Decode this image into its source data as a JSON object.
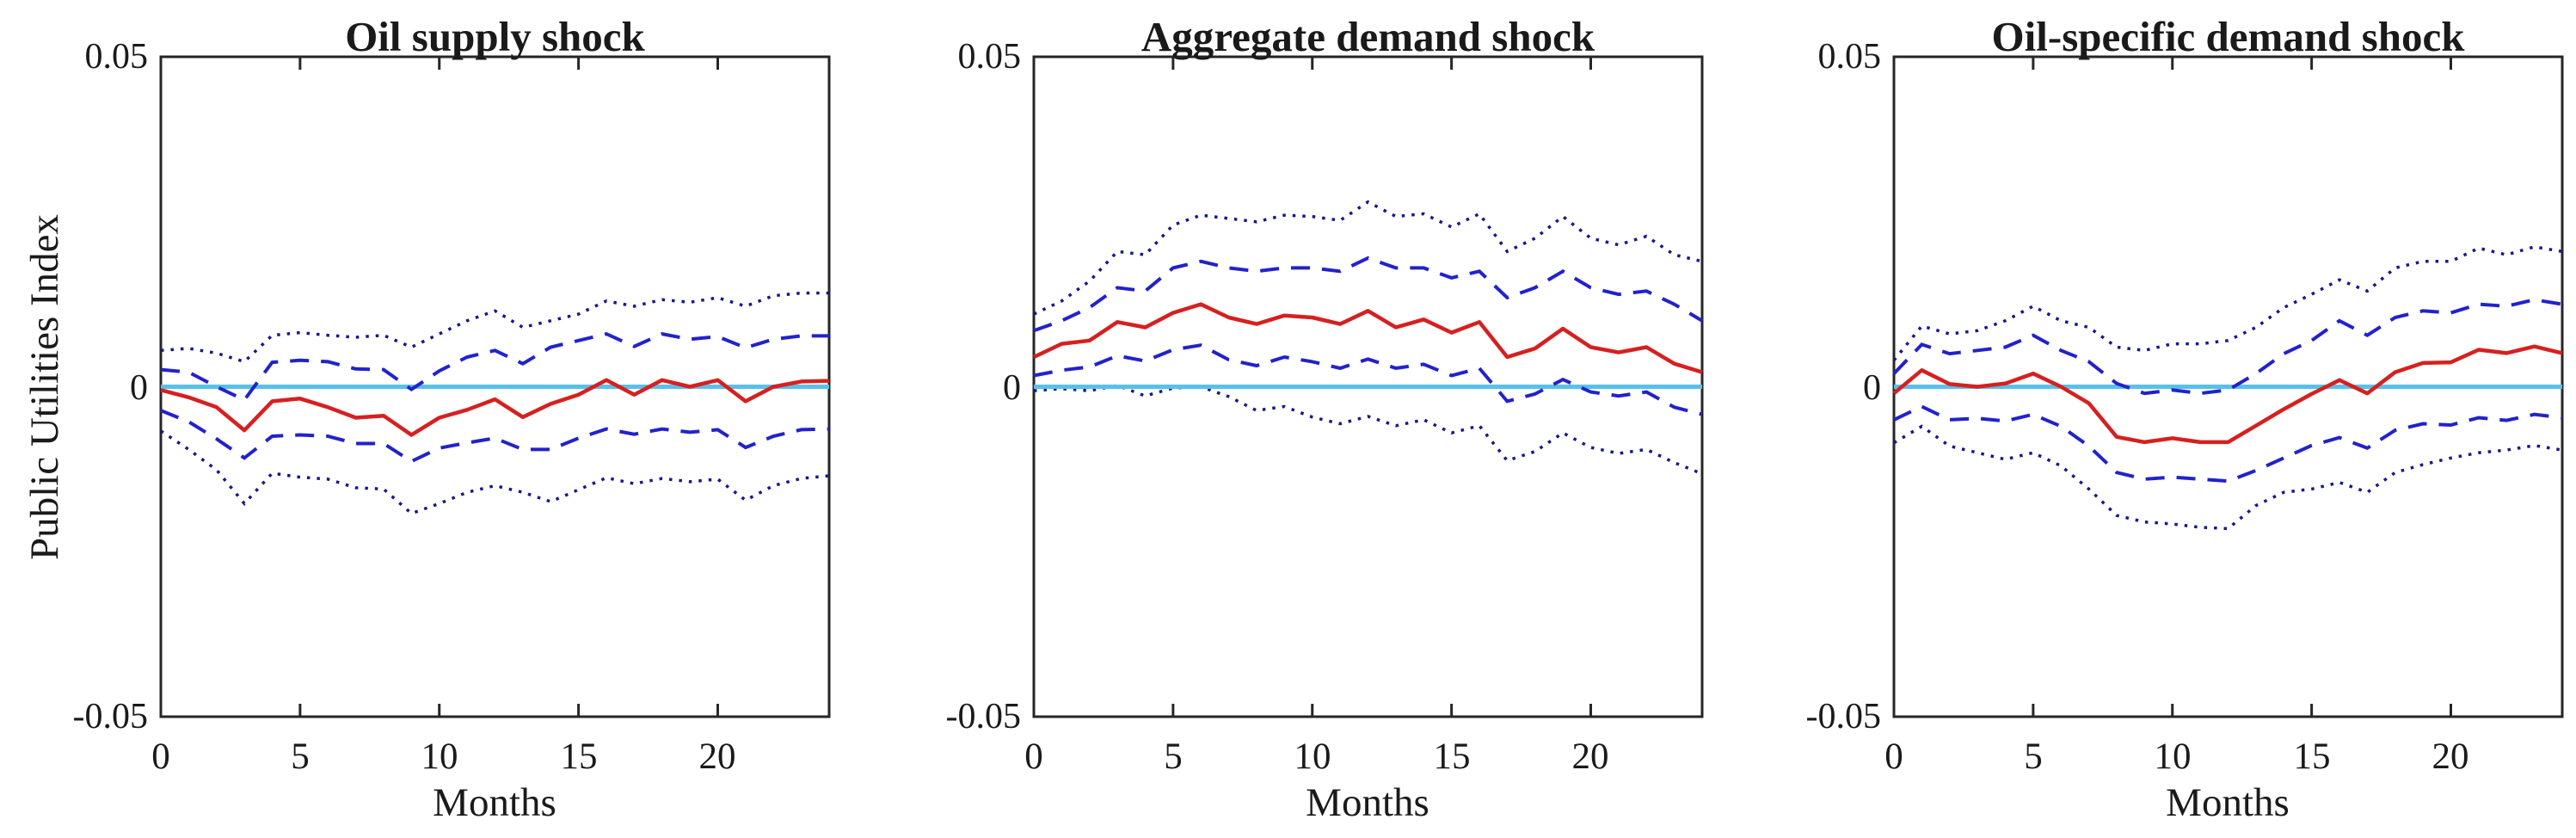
{
  "figure": {
    "background": "#ffffff",
    "axis_color": "#262626",
    "text_color": "#1a1a1a"
  },
  "axes": {
    "ylabel": "Public Utilities Index",
    "xlabel": "Months",
    "ytick_labels": [
      "0.05",
      "0",
      "-0.05"
    ],
    "ytick_values": [
      0.05,
      0,
      -0.05
    ],
    "xtick_labels": [
      "0",
      "5",
      "10",
      "15",
      "20"
    ],
    "xtick_values": [
      0,
      5,
      10,
      15,
      20
    ],
    "ylim": [
      -0.05,
      0.05
    ],
    "xlim": [
      0,
      24
    ],
    "grid": false,
    "legend": "none",
    "box": true
  },
  "colors": {
    "response_red": "#d62020",
    "band_dashed_blue": "#2222cc",
    "band_dotted_navy": "#181888",
    "zero_line_cyan": "#58c1ea"
  },
  "chart_data": [
    {
      "type": "line",
      "title": "Oil supply shock",
      "xlabel": "Months",
      "ylabel": "Public Utilities Index",
      "ylim": [
        -0.05,
        0.05
      ],
      "x": [
        0,
        1,
        2,
        3,
        4,
        5,
        6,
        7,
        8,
        9,
        10,
        11,
        12,
        13,
        14,
        15,
        16,
        17,
        18,
        19,
        20,
        21,
        22,
        23,
        24
      ],
      "zero_line": 0,
      "series": [
        {
          "id": "outer-band-upper",
          "label": "outer confidence band upper (dotted)",
          "style": "dotted",
          "color": "#181888",
          "values": [
            0.0055,
            0.0058,
            0.0051,
            0.0038,
            0.0078,
            0.0082,
            0.0078,
            0.0075,
            0.0078,
            0.006,
            0.008,
            0.01,
            0.0115,
            0.009,
            0.01,
            0.011,
            0.013,
            0.0122,
            0.0132,
            0.0128,
            0.0135,
            0.0122,
            0.0138,
            0.0142,
            0.0142
          ]
        },
        {
          "id": "outer-band-lower",
          "label": "outer confidence band lower (dotted)",
          "style": "dotted",
          "color": "#181888",
          "values": [
            -0.0067,
            -0.0095,
            -0.0126,
            -0.0177,
            -0.0131,
            -0.0137,
            -0.014,
            -0.0153,
            -0.0155,
            -0.0192,
            -0.0177,
            -0.016,
            -0.015,
            -0.016,
            -0.0174,
            -0.0156,
            -0.0138,
            -0.0147,
            -0.0139,
            -0.0144,
            -0.014,
            -0.0172,
            -0.015,
            -0.0139,
            -0.0135
          ]
        },
        {
          "id": "inner-band-upper",
          "label": "inner confidence band upper (dashed)",
          "style": "dashed",
          "color": "#2222cc",
          "values": [
            0.0026,
            0.0022,
            0.0,
            -0.002,
            0.0037,
            0.004,
            0.0038,
            0.0027,
            0.0026,
            -0.0004,
            0.0024,
            0.0045,
            0.0055,
            0.0035,
            0.006,
            0.007,
            0.008,
            0.0061,
            0.008,
            0.0072,
            0.0076,
            0.0059,
            0.0072,
            0.0077,
            0.0077
          ]
        },
        {
          "id": "inner-band-lower",
          "label": "inner confidence band lower (dashed)",
          "style": "dashed",
          "color": "#2222cc",
          "values": [
            -0.0036,
            -0.0053,
            -0.0079,
            -0.0108,
            -0.0075,
            -0.0073,
            -0.0075,
            -0.0086,
            -0.0086,
            -0.0113,
            -0.0093,
            -0.0085,
            -0.0078,
            -0.0095,
            -0.0095,
            -0.0078,
            -0.0064,
            -0.0072,
            -0.0064,
            -0.0069,
            -0.0065,
            -0.0092,
            -0.0075,
            -0.0065,
            -0.0064
          ]
        },
        {
          "id": "impulse-response",
          "label": "impulse response (solid red)",
          "style": "solid",
          "color": "#d62020",
          "values": [
            -0.0005,
            -0.0016,
            -0.0031,
            -0.0066,
            -0.0022,
            -0.0018,
            -0.0031,
            -0.0047,
            -0.0044,
            -0.0073,
            -0.0047,
            -0.0035,
            -0.0019,
            -0.0046,
            -0.0026,
            -0.0012,
            0.001,
            -0.0012,
            0.001,
            0.0,
            0.001,
            -0.0022,
            0.0,
            0.0008,
            0.0009
          ]
        }
      ]
    },
    {
      "type": "line",
      "title": "Aggregate demand shock",
      "xlabel": "Months",
      "ylabel": "Public Utilities Index",
      "ylim": [
        -0.05,
        0.05
      ],
      "x": [
        0,
        1,
        2,
        3,
        4,
        5,
        6,
        7,
        8,
        9,
        10,
        11,
        12,
        13,
        14,
        15,
        16,
        17,
        18,
        19,
        20,
        21,
        22,
        23,
        24
      ],
      "zero_line": 0,
      "series": [
        {
          "id": "outer-band-upper",
          "label": "outer confidence band upper (dotted)",
          "style": "dotted",
          "color": "#181888",
          "values": [
            0.011,
            0.013,
            0.016,
            0.0205,
            0.02,
            0.0245,
            0.026,
            0.0255,
            0.025,
            0.026,
            0.0258,
            0.0252,
            0.028,
            0.0258,
            0.0262,
            0.0242,
            0.0262,
            0.0205,
            0.0225,
            0.0258,
            0.0225,
            0.0215,
            0.0228,
            0.02,
            0.019
          ]
        },
        {
          "id": "outer-band-lower",
          "label": "outer confidence band lower (dotted)",
          "style": "dotted",
          "color": "#181888",
          "values": [
            -0.0006,
            -0.0003,
            -0.0006,
            0.0002,
            -0.0014,
            -0.0002,
            0.0,
            -0.0015,
            -0.0036,
            -0.003,
            -0.0046,
            -0.0056,
            -0.0045,
            -0.0059,
            -0.005,
            -0.007,
            -0.0059,
            -0.0112,
            -0.0098,
            -0.007,
            -0.0092,
            -0.0101,
            -0.0095,
            -0.0115,
            -0.0132
          ]
        },
        {
          "id": "inner-band-upper",
          "label": "inner confidence band upper (dashed)",
          "style": "dashed",
          "color": "#2222cc",
          "values": [
            0.0085,
            0.01,
            0.012,
            0.015,
            0.0145,
            0.018,
            0.019,
            0.018,
            0.0175,
            0.018,
            0.018,
            0.0175,
            0.0195,
            0.018,
            0.018,
            0.0165,
            0.0175,
            0.0135,
            0.015,
            0.0175,
            0.015,
            0.014,
            0.0145,
            0.0125,
            0.01
          ]
        },
        {
          "id": "inner-band-lower",
          "label": "inner confidence band lower (dashed)",
          "style": "dashed",
          "color": "#2222cc",
          "values": [
            0.0017,
            0.0025,
            0.003,
            0.0047,
            0.0039,
            0.0056,
            0.0063,
            0.0041,
            0.0032,
            0.0045,
            0.0038,
            0.0028,
            0.0042,
            0.0028,
            0.0034,
            0.0017,
            0.0028,
            -0.0022,
            -0.0011,
            0.0011,
            -0.0008,
            -0.0014,
            -0.0008,
            -0.0031,
            -0.0042
          ]
        },
        {
          "id": "impulse-response",
          "label": "impulse response (solid red)",
          "style": "solid",
          "color": "#d62020",
          "values": [
            0.0045,
            0.0065,
            0.007,
            0.0098,
            0.009,
            0.0112,
            0.0125,
            0.0105,
            0.0095,
            0.0108,
            0.0105,
            0.0095,
            0.0115,
            0.009,
            0.0102,
            0.0082,
            0.0098,
            0.0045,
            0.0058,
            0.0088,
            0.006,
            0.0052,
            0.006,
            0.0035,
            0.0022
          ]
        }
      ]
    },
    {
      "type": "line",
      "title": "Oil-specific demand shock",
      "xlabel": "Months",
      "ylabel": "Public Utilities Index",
      "ylim": [
        -0.05,
        0.05
      ],
      "x": [
        0,
        1,
        2,
        3,
        4,
        5,
        6,
        7,
        8,
        9,
        10,
        11,
        12,
        13,
        14,
        15,
        16,
        17,
        18,
        19,
        20,
        21,
        22,
        23,
        24
      ],
      "zero_line": 0,
      "series": [
        {
          "id": "outer-band-upper",
          "label": "outer confidence band upper (dotted)",
          "style": "dotted",
          "color": "#181888",
          "values": [
            0.004,
            0.0092,
            0.008,
            0.0085,
            0.01,
            0.0122,
            0.01,
            0.009,
            0.006,
            0.0055,
            0.0065,
            0.0065,
            0.007,
            0.009,
            0.012,
            0.014,
            0.0162,
            0.0145,
            0.018,
            0.019,
            0.019,
            0.021,
            0.02,
            0.0212,
            0.0205
          ]
        },
        {
          "id": "outer-band-lower",
          "label": "outer confidence band lower (dotted)",
          "style": "dotted",
          "color": "#181888",
          "values": [
            -0.0085,
            -0.006,
            -0.009,
            -0.01,
            -0.011,
            -0.01,
            -0.012,
            -0.0155,
            -0.0195,
            -0.0205,
            -0.0208,
            -0.0213,
            -0.0215,
            -0.018,
            -0.016,
            -0.0155,
            -0.0145,
            -0.016,
            -0.013,
            -0.0118,
            -0.0108,
            -0.01,
            -0.0096,
            -0.0089,
            -0.0096
          ]
        },
        {
          "id": "inner-band-upper",
          "label": "inner confidence band upper (dashed)",
          "style": "dashed",
          "color": "#2222cc",
          "values": [
            0.002,
            0.0064,
            0.005,
            0.0055,
            0.006,
            0.0078,
            0.0055,
            0.0038,
            0.0005,
            -0.001,
            -0.0005,
            -0.001,
            -0.0005,
            0.002,
            0.005,
            0.007,
            0.01,
            0.0078,
            0.0105,
            0.0115,
            0.0112,
            0.0125,
            0.0122,
            0.0132,
            0.0125
          ]
        },
        {
          "id": "inner-band-lower",
          "label": "inner confidence band lower (dashed)",
          "style": "dashed",
          "color": "#2222cc",
          "values": [
            -0.005,
            -0.003,
            -0.005,
            -0.0048,
            -0.0052,
            -0.0042,
            -0.006,
            -0.009,
            -0.013,
            -0.014,
            -0.0137,
            -0.014,
            -0.0143,
            -0.0127,
            -0.0108,
            -0.0089,
            -0.0077,
            -0.0093,
            -0.0066,
            -0.0056,
            -0.0058,
            -0.0047,
            -0.0051,
            -0.0042,
            -0.0047
          ]
        },
        {
          "id": "impulse-response",
          "label": "impulse response (solid red)",
          "style": "solid",
          "color": "#d62020",
          "values": [
            -0.001,
            0.0025,
            0.0004,
            0.0,
            0.0005,
            0.002,
            0.0,
            -0.0025,
            -0.0076,
            -0.0084,
            -0.0078,
            -0.0084,
            -0.0084,
            -0.0059,
            -0.0034,
            -0.0011,
            0.001,
            -0.001,
            0.0022,
            0.0036,
            0.0037,
            0.0056,
            0.0051,
            0.0061,
            0.0051
          ]
        }
      ]
    }
  ]
}
